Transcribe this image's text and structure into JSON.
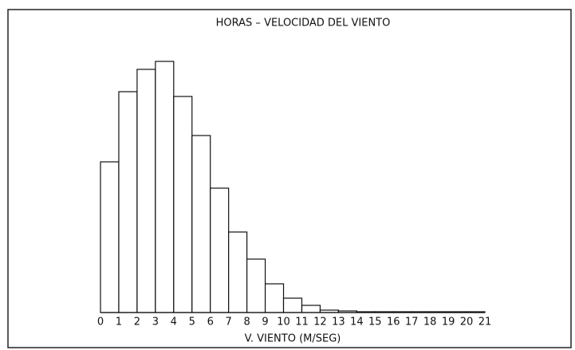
{
  "chart_data": {
    "type": "histogram",
    "title": "HORAS – VELOCIDAD DEL VIENTO",
    "x_label": "V. VIENTO (M/SEG)",
    "bins": [
      0,
      1,
      2,
      3,
      4,
      5,
      6,
      7,
      8,
      9,
      10,
      11,
      12,
      13,
      14,
      15,
      16,
      17,
      18,
      19,
      20,
      21
    ],
    "counts": [
      189,
      277,
      305,
      315,
      271,
      222,
      156,
      101,
      67,
      36,
      18,
      9,
      3,
      2,
      1,
      1,
      1,
      1,
      1,
      1,
      1
    ],
    "color": "#ffffff",
    "xlim": [
      0,
      21
    ],
    "xticks": [
      0,
      1,
      2,
      3,
      4,
      5,
      6,
      7,
      8,
      9,
      10,
      11,
      12,
      13,
      14,
      15,
      16,
      17,
      18,
      19,
      20,
      21
    ],
    "ylim": [
      0,
      350
    ],
    "grid": false
  }
}
